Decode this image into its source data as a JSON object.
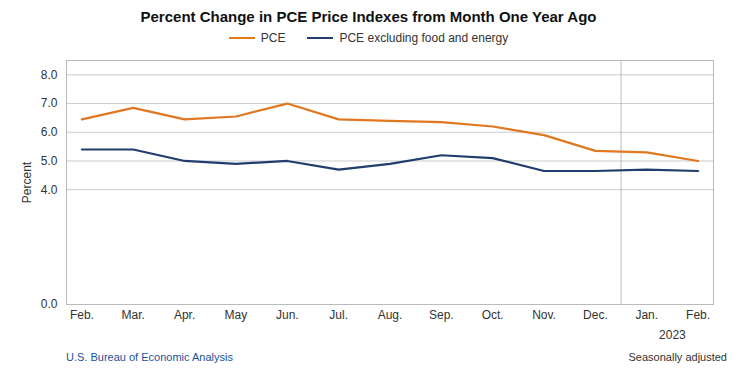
{
  "chart_data": {
    "type": "line",
    "title": "Percent Change in PCE Price Indexes from Month One Year Ago",
    "ylabel": "Percent",
    "categories": [
      "Feb.",
      "Mar.",
      "Apr.",
      "May",
      "Jun.",
      "Jul.",
      "Aug.",
      "Sep.",
      "Oct.",
      "Nov.",
      "Dec.",
      "Jan.",
      "Feb."
    ],
    "series": [
      {
        "name": "PCE",
        "color": "#E07820",
        "values": [
          6.45,
          6.85,
          6.45,
          6.55,
          7.0,
          6.45,
          6.4,
          6.35,
          6.2,
          5.9,
          5.35,
          5.3,
          5.0
        ]
      },
      {
        "name": "PCE excluding food and energy",
        "color": "#1F3E6E",
        "values": [
          5.4,
          5.4,
          5.0,
          4.9,
          5.0,
          4.7,
          4.9,
          5.2,
          5.1,
          4.65,
          4.65,
          4.7,
          4.65
        ]
      }
    ],
    "ylim": [
      0.0,
      8.5
    ],
    "yticks": [
      {
        "value": 0.0,
        "label": "0.0"
      },
      {
        "value": 4.0,
        "label": "4.0"
      },
      {
        "value": 5.0,
        "label": "5.0"
      },
      {
        "value": 6.0,
        "label": "6.0"
      },
      {
        "value": 7.0,
        "label": "7.0"
      },
      {
        "value": 8.0,
        "label": "8.0"
      }
    ],
    "grid": true,
    "legend": "top",
    "annotations": [
      "2023",
      "U.S. Bureau of Economic Analysis",
      "Seasonally adjusted"
    ]
  }
}
